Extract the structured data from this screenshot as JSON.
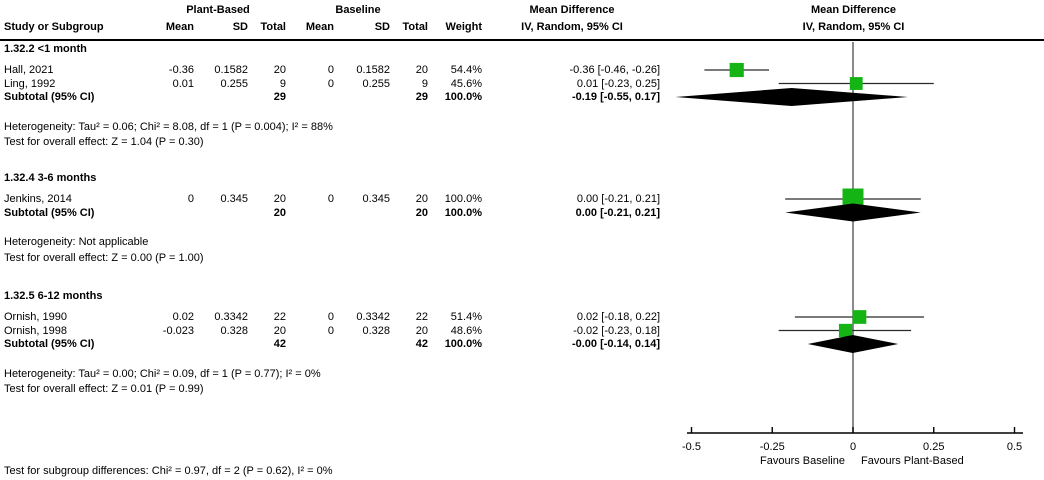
{
  "header": {
    "group1": "Plant-Based",
    "group2": "Baseline",
    "col_study": "Study or Subgroup",
    "col_mean": "Mean",
    "col_sd": "SD",
    "col_total": "Total",
    "col_weight": "Weight",
    "md_title": "Mean Difference",
    "md_sub": "IV, Random, 95% CI"
  },
  "colors": {
    "marker_green": "#15b415",
    "diamond_black": "#000000",
    "ci_line": "#2a2a2a",
    "zero_line": "#58595b",
    "axis": "#000000"
  },
  "chart_data": {
    "type": "scatter",
    "subtype": "forest_plot",
    "effect_measure": "Mean Difference, IV, Random, 95% CI",
    "xlim": [
      -0.5,
      0.5
    ],
    "x_ticks": [
      -0.5,
      -0.25,
      0,
      0.25,
      0.5
    ],
    "x_tick_labels": [
      "-0.5",
      "-0.25",
      "0",
      "0.25",
      "0.5"
    ],
    "favours": {
      "left": "Favours Baseline",
      "right": "Favours Plant-Based"
    },
    "sections": [
      {
        "title": "1.32.2 <1 month",
        "studies": [
          {
            "name": "Hall, 2021",
            "mean1": "-0.36",
            "sd1": "0.1582",
            "total1": "20",
            "mean2": "0",
            "sd2": "0.1582",
            "total2": "20",
            "weight": "54.4%",
            "ci_text": "-0.36 [-0.46, -0.26]",
            "md": -0.36,
            "lo": -0.46,
            "hi": -0.26,
            "wt": 54.4
          },
          {
            "name": "Ling, 1992",
            "mean1": "0.01",
            "sd1": "0.255",
            "total1": "9",
            "mean2": "0",
            "sd2": "0.255",
            "total2": "9",
            "weight": "45.6%",
            "ci_text": "0.01 [-0.23, 0.25]",
            "md": 0.01,
            "lo": -0.23,
            "hi": 0.25,
            "wt": 45.6
          }
        ],
        "subtotal": {
          "name": "Subtotal (95% CI)",
          "total1": "29",
          "total2": "29",
          "weight": "100.0%",
          "ci_text": "-0.19 [-0.55, 0.17]",
          "md": -0.19,
          "lo": -0.55,
          "hi": 0.17
        },
        "heterogeneity": "Heterogeneity: Tau² = 0.06; Chi² = 8.08, df = 1 (P = 0.004); I² = 88%",
        "overall": "Test for overall effect: Z = 1.04 (P = 0.30)"
      },
      {
        "title": "1.32.4 3-6 months",
        "studies": [
          {
            "name": "Jenkins, 2014",
            "mean1": "0",
            "sd1": "0.345",
            "total1": "20",
            "mean2": "0",
            "sd2": "0.345",
            "total2": "20",
            "weight": "100.0%",
            "ci_text": "0.00 [-0.21, 0.21]",
            "md": 0.0,
            "lo": -0.21,
            "hi": 0.21,
            "wt": 100.0
          }
        ],
        "subtotal": {
          "name": "Subtotal (95% CI)",
          "total1": "20",
          "total2": "20",
          "weight": "100.0%",
          "ci_text": "0.00 [-0.21, 0.21]",
          "md": 0.0,
          "lo": -0.21,
          "hi": 0.21
        },
        "heterogeneity": "Heterogeneity: Not applicable",
        "overall": "Test for overall effect: Z = 0.00 (P = 1.00)"
      },
      {
        "title": "1.32.5 6-12 months",
        "studies": [
          {
            "name": "Ornish, 1990",
            "mean1": "0.02",
            "sd1": "0.3342",
            "total1": "22",
            "mean2": "0",
            "sd2": "0.3342",
            "total2": "22",
            "weight": "51.4%",
            "ci_text": "0.02 [-0.18, 0.22]",
            "md": 0.02,
            "lo": -0.18,
            "hi": 0.22,
            "wt": 51.4
          },
          {
            "name": "Ornish, 1998",
            "mean1": "-0.023",
            "sd1": "0.328",
            "total1": "20",
            "mean2": "0",
            "sd2": "0.328",
            "total2": "20",
            "weight": "48.6%",
            "ci_text": "-0.02 [-0.23, 0.18]",
            "md": -0.023,
            "lo": -0.23,
            "hi": 0.18,
            "wt": 48.6
          }
        ],
        "subtotal": {
          "name": "Subtotal (95% CI)",
          "total1": "42",
          "total2": "42",
          "weight": "100.0%",
          "ci_text": "-0.00 [-0.14, 0.14]",
          "md": -0.001,
          "lo": -0.14,
          "hi": 0.14
        },
        "heterogeneity": "Heterogeneity: Tau² = 0.00; Chi² = 0.09, df = 1 (P = 0.77); I² = 0%",
        "overall": "Test for overall effect: Z = 0.01 (P = 0.99)"
      }
    ]
  },
  "footer": {
    "subgroup_test": "Test for subgroup differences: Chi² = 0.97, df = 2 (P = 0.62), I² = 0%"
  }
}
